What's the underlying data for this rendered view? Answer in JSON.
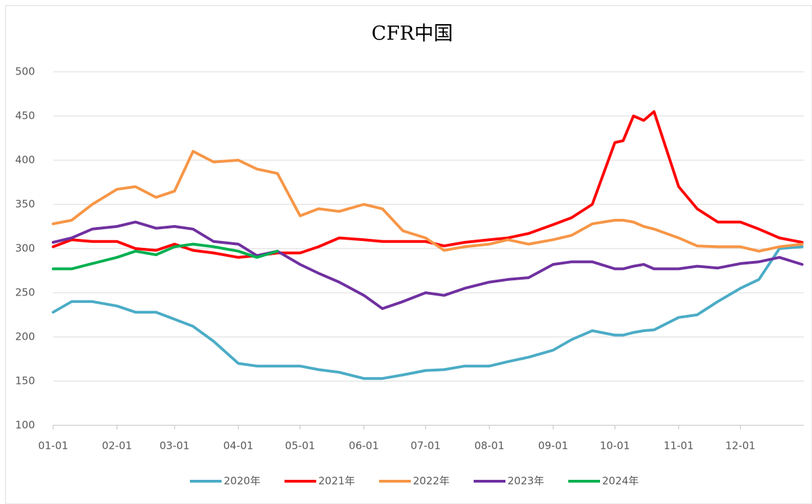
{
  "chart_data": {
    "type": "line",
    "title": "CFR中国",
    "x": [
      "01-01",
      "01-10",
      "01-20",
      "02-01",
      "02-10",
      "02-20",
      "03-01",
      "03-10",
      "03-20",
      "04-01",
      "04-10",
      "04-20",
      "05-01",
      "05-10",
      "05-20",
      "06-01",
      "06-10",
      "06-20",
      "07-01",
      "07-10",
      "07-20",
      "08-01",
      "08-10",
      "08-20",
      "09-01",
      "09-10",
      "09-20",
      "10-01",
      "10-05",
      "10-10",
      "10-15",
      "10-20",
      "11-01",
      "11-10",
      "11-20",
      "12-01",
      "12-10",
      "12-20",
      "12-31"
    ],
    "xticks": [
      "01-01",
      "02-01",
      "03-01",
      "04-01",
      "05-01",
      "06-01",
      "07-01",
      "08-01",
      "09-01",
      "10-01",
      "11-01",
      "12-01"
    ],
    "ylim": [
      100,
      500
    ],
    "yticks": [
      100,
      150,
      200,
      250,
      300,
      350,
      400,
      450,
      500
    ],
    "grid": true,
    "legend": "bottom",
    "series": [
      {
        "name": "2020年",
        "color": "#4bacc6",
        "values": [
          228,
          240,
          240,
          235,
          228,
          228,
          220,
          212,
          195,
          170,
          167,
          167,
          167,
          163,
          160,
          153,
          153,
          157,
          162,
          163,
          167,
          167,
          172,
          177,
          185,
          197,
          207,
          202,
          202,
          205,
          207,
          208,
          222,
          225,
          240,
          255,
          265,
          300,
          302
        ]
      },
      {
        "name": "2021年",
        "color": "#ff0000",
        "values": [
          302,
          310,
          308,
          308,
          300,
          298,
          305,
          298,
          295,
          290,
          292,
          295,
          295,
          302,
          312,
          310,
          308,
          308,
          308,
          303,
          307,
          310,
          312,
          317,
          327,
          335,
          350,
          420,
          422,
          450,
          445,
          455,
          370,
          345,
          330,
          330,
          322,
          312,
          307
        ]
      },
      {
        "name": "2022年",
        "color": "#f79646",
        "values": [
          328,
          332,
          350,
          367,
          370,
          358,
          365,
          410,
          398,
          400,
          390,
          385,
          337,
          345,
          342,
          350,
          345,
          320,
          312,
          298,
          302,
          305,
          310,
          305,
          310,
          315,
          328,
          332,
          332,
          330,
          325,
          322,
          312,
          303,
          302,
          302,
          297,
          302,
          305
        ]
      },
      {
        "name": "2023年",
        "color": "#7030a0",
        "values": [
          307,
          312,
          322,
          325,
          330,
          323,
          325,
          322,
          308,
          305,
          292,
          297,
          282,
          272,
          262,
          247,
          232,
          240,
          250,
          247,
          255,
          262,
          265,
          267,
          282,
          285,
          285,
          277,
          277,
          280,
          282,
          277,
          277,
          280,
          278,
          283,
          285,
          290,
          282
        ]
      },
      {
        "name": "2024年",
        "color": "#00b050",
        "values": [
          277,
          277,
          283,
          290,
          297,
          293,
          302,
          305,
          302,
          297,
          290,
          297,
          null,
          null,
          null,
          null,
          null,
          null,
          null,
          null,
          null,
          null,
          null,
          null,
          null,
          null,
          null,
          null,
          null,
          null,
          null,
          null,
          null,
          null,
          null,
          null,
          null,
          null,
          null
        ]
      }
    ]
  }
}
